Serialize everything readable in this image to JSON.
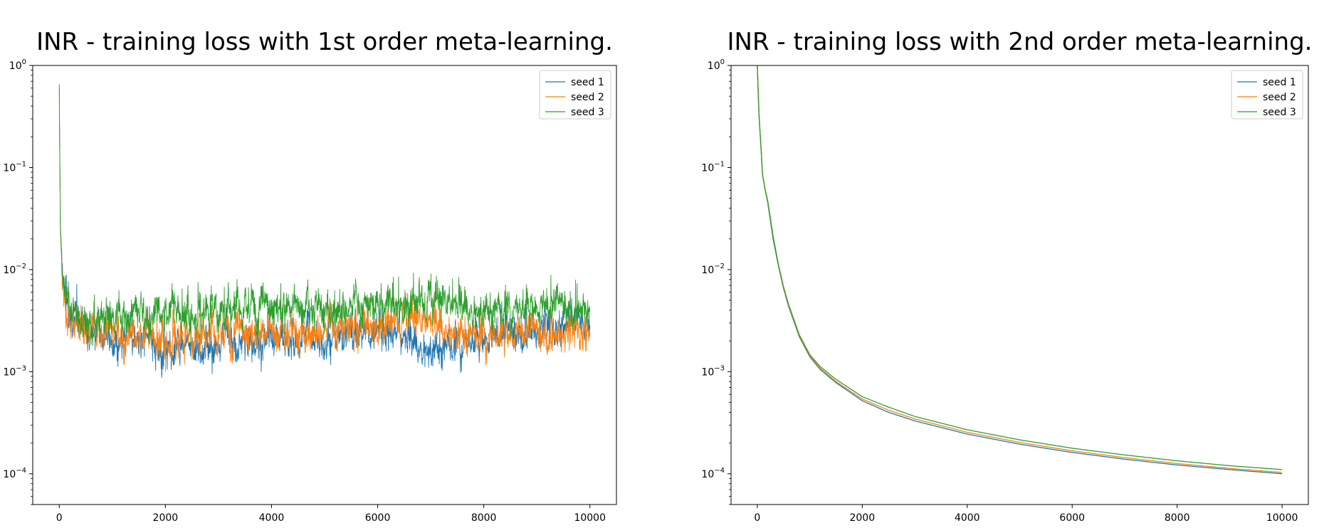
{
  "chart_data": [
    {
      "type": "line",
      "title": "INR - training loss with 1st order meta-learning.",
      "xlabel": "",
      "ylabel": "",
      "yscale": "log",
      "xlim": [
        -500,
        10500
      ],
      "ylim": [
        5e-05,
        1
      ],
      "x_ticks": [
        "0",
        "2000",
        "4000",
        "6000",
        "8000",
        "10000"
      ],
      "y_ticks": [
        {
          "base": "10",
          "exp": "0"
        },
        {
          "base": "10",
          "exp": "−1"
        },
        {
          "base": "10",
          "exp": "−2"
        },
        {
          "base": "10",
          "exp": "−3"
        },
        {
          "base": "10",
          "exp": "−4"
        }
      ],
      "legend_position": "top-right",
      "grid": false,
      "series": [
        {
          "name": "seed 1",
          "color": "#1f77b4",
          "x": [
            0,
            20,
            50,
            100,
            200,
            300,
            500,
            1000,
            1500,
            2000,
            3000,
            4000,
            5000,
            6000,
            7000,
            8000,
            9000,
            10000
          ],
          "values": [
            0.65,
            0.03,
            0.012,
            0.006,
            0.0032,
            0.0028,
            0.0025,
            0.0019,
            0.0018,
            0.0018,
            0.0019,
            0.002,
            0.0022,
            0.0024,
            0.0018,
            0.0022,
            0.0028,
            0.003
          ]
        },
        {
          "name": "seed 2",
          "color": "#ff7f0e",
          "x": [
            0,
            20,
            50,
            100,
            200,
            300,
            500,
            1000,
            1500,
            2000,
            3000,
            4000,
            5000,
            6000,
            7000,
            8000,
            9000,
            10000
          ],
          "values": [
            0.5,
            0.028,
            0.011,
            0.0055,
            0.0033,
            0.003,
            0.0028,
            0.0025,
            0.0022,
            0.0021,
            0.0023,
            0.0024,
            0.0026,
            0.0028,
            0.003,
            0.0024,
            0.0025,
            0.0026
          ]
        },
        {
          "name": "seed 3",
          "color": "#2ca02c",
          "x": [
            0,
            20,
            50,
            100,
            200,
            300,
            500,
            1000,
            1500,
            2000,
            3000,
            4000,
            5000,
            6000,
            7000,
            8000,
            9000,
            10000
          ],
          "values": [
            0.6,
            0.025,
            0.01,
            0.0058,
            0.0037,
            0.0034,
            0.0033,
            0.0035,
            0.0037,
            0.0038,
            0.004,
            0.0042,
            0.0043,
            0.0045,
            0.0045,
            0.0044,
            0.0045,
            0.0046
          ]
        }
      ]
    },
    {
      "type": "line",
      "title": "INR - training loss with 2nd order meta-learning.",
      "xlabel": "",
      "ylabel": "",
      "yscale": "log",
      "xlim": [
        -500,
        10500
      ],
      "ylim": [
        5e-05,
        1
      ],
      "x_ticks": [
        "0",
        "2000",
        "4000",
        "6000",
        "8000",
        "10000"
      ],
      "y_ticks": [
        {
          "base": "10",
          "exp": "0"
        },
        {
          "base": "10",
          "exp": "−1"
        },
        {
          "base": "10",
          "exp": "−2"
        },
        {
          "base": "10",
          "exp": "−3"
        },
        {
          "base": "10",
          "exp": "−4"
        }
      ],
      "legend_position": "top-right",
      "grid": false,
      "series": [
        {
          "name": "seed 1",
          "color": "#1f77b4",
          "x": [
            0,
            30,
            100,
            150,
            200,
            300,
            400,
            500,
            600,
            800,
            1000,
            1200,
            1500,
            2000,
            2500,
            3000,
            4000,
            5000,
            6000,
            7000,
            8000,
            9000,
            10000
          ],
          "values": [
            1.0,
            0.35,
            0.085,
            0.06,
            0.045,
            0.02,
            0.011,
            0.0065,
            0.0043,
            0.0022,
            0.0014,
            0.00105,
            0.00078,
            0.00052,
            0.0004,
            0.00033,
            0.000245,
            0.000195,
            0.000162,
            0.000139,
            0.000122,
            0.00011,
            0.0001
          ]
        },
        {
          "name": "seed 2",
          "color": "#ff7f0e",
          "x": [
            0,
            30,
            100,
            150,
            200,
            300,
            400,
            500,
            600,
            800,
            1000,
            1200,
            1500,
            2000,
            2500,
            3000,
            4000,
            5000,
            6000,
            7000,
            8000,
            9000,
            10000
          ],
          "values": [
            1.0,
            0.35,
            0.085,
            0.06,
            0.046,
            0.021,
            0.0112,
            0.0066,
            0.0044,
            0.00225,
            0.00143,
            0.00108,
            0.0008,
            0.00054,
            0.00042,
            0.000345,
            0.000255,
            0.000203,
            0.000168,
            0.000144,
            0.000126,
            0.000113,
            0.000103
          ]
        },
        {
          "name": "seed 3",
          "color": "#2ca02c",
          "x": [
            0,
            30,
            100,
            150,
            200,
            300,
            400,
            500,
            600,
            800,
            1000,
            1200,
            1500,
            2000,
            2500,
            3000,
            4000,
            5000,
            6000,
            7000,
            8000,
            9000,
            10000
          ],
          "values": [
            1.0,
            0.36,
            0.086,
            0.061,
            0.047,
            0.0215,
            0.0114,
            0.0068,
            0.0045,
            0.0023,
            0.00147,
            0.00112,
            0.00084,
            0.00057,
            0.00045,
            0.000365,
            0.00027,
            0.000215,
            0.000178,
            0.000153,
            0.000134,
            0.00012,
            0.00011
          ]
        }
      ]
    }
  ]
}
